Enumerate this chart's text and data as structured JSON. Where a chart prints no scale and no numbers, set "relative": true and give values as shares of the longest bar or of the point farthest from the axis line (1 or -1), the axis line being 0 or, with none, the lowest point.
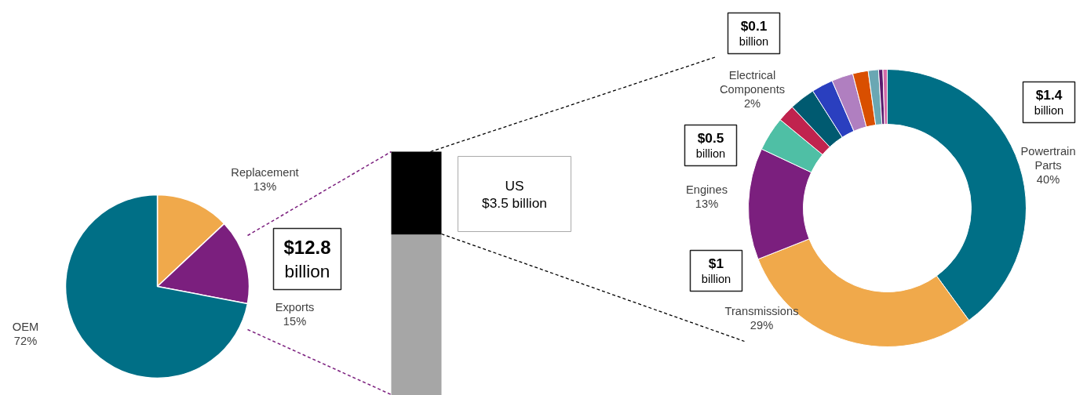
{
  "chart_data": [
    {
      "type": "pie",
      "categories": [
        "Replacement",
        "Exports",
        "OEM"
      ],
      "values": [
        13,
        15,
        72
      ],
      "colors": [
        "#f0a94b",
        "#7b1f7e",
        "#006f86"
      ],
      "value_labels": [
        "13%",
        "15%",
        "72%"
      ],
      "annotations": [
        "$12.8 billion"
      ]
    },
    {
      "type": "bar",
      "stacked": true,
      "relative": true,
      "categories": [
        null
      ],
      "series": [
        {
          "color": "#a6a6a6",
          "values": [
            0.66
          ]
        },
        {
          "color": "#000000",
          "values": [
            0.34
          ]
        }
      ],
      "annotations": [
        "US $3.5 billion"
      ]
    },
    {
      "type": "donut",
      "categories": [
        "Powertrain Parts",
        "Transmissions",
        "Engines",
        null,
        "Electrical Components",
        null,
        null,
        null,
        null,
        null,
        null,
        null
      ],
      "values": [
        40,
        29,
        13,
        4,
        2,
        3,
        2.5,
        2.5,
        1.8,
        1.2,
        0.5,
        0.5
      ],
      "colors": [
        "#006f86",
        "#f0a94b",
        "#7b1f7e",
        "#4fbfa5",
        "#c0234e",
        "#005a70",
        "#2a3fbf",
        "#b07fc0",
        "#d94f00",
        "#6aa7b3",
        "#5a1a6e",
        "#d36ba8"
      ],
      "value_labels": [
        "40%",
        "29%",
        "13%",
        null,
        "2%",
        null,
        null,
        null,
        null,
        null,
        null,
        null
      ],
      "annotations": [
        "$0.1 billion",
        "$1.4 billion",
        "$0.5 billion",
        "$1 billion"
      ]
    }
  ]
}
